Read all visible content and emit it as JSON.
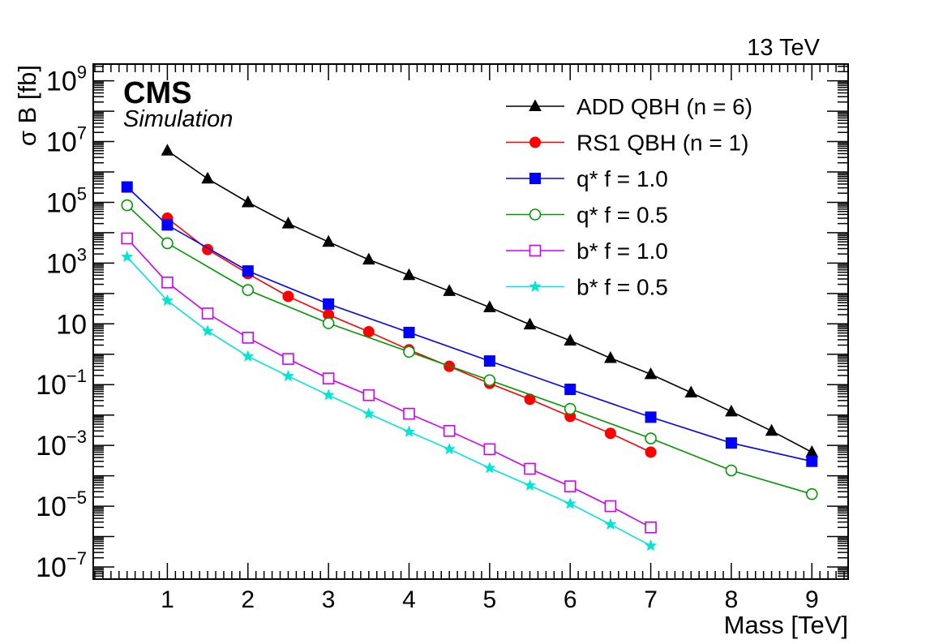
{
  "chart_data": {
    "type": "line",
    "title": "",
    "energy_label": "13 TeV",
    "experiment_label": "CMS",
    "sublabel": "Simulation",
    "xlabel": "Mass [TeV]",
    "ylabel": "σ B [fb]",
    "xlim": [
      0.08,
      9.45
    ],
    "ylim_log10": [
      -7.4,
      9.55
    ],
    "y_scale": "log",
    "x_ticks": [
      1,
      2,
      3,
      4,
      5,
      6,
      7,
      8,
      9
    ],
    "y_tick_labels": [
      {
        "exp": 9,
        "text": "10",
        "sup": "9"
      },
      {
        "exp": 7,
        "text": "10",
        "sup": "7"
      },
      {
        "exp": 5,
        "text": "10",
        "sup": "5"
      },
      {
        "exp": 3,
        "text": "10",
        "sup": "3"
      },
      {
        "exp": 1,
        "text": "10",
        "sup": ""
      },
      {
        "exp": -1,
        "text": "10",
        "sup": "−1"
      },
      {
        "exp": -3,
        "text": "10",
        "sup": "−3"
      },
      {
        "exp": -5,
        "text": "10",
        "sup": "−5"
      },
      {
        "exp": -7,
        "text": "10",
        "sup": "−7"
      }
    ],
    "legend_position": "top-right",
    "series": [
      {
        "name": "ADD QBH (n = 6)",
        "color": "#000000",
        "marker": "triangle",
        "filled": true,
        "x": [
          1,
          1.5,
          2,
          2.5,
          3,
          3.5,
          4,
          4.5,
          5,
          5.5,
          6,
          6.5,
          7,
          7.5,
          8,
          8.5,
          9
        ],
        "y": [
          5000000.0,
          600000.0,
          100000.0,
          20000.0,
          5000.0,
          1300.0,
          400,
          120,
          35,
          9.5,
          2.8,
          0.75,
          0.22,
          0.055,
          0.013,
          0.003,
          0.0006
        ]
      },
      {
        "name": "RS1 QBH (n = 1)",
        "color": "#ff0000",
        "marker": "circle",
        "filled": true,
        "x": [
          1,
          1.5,
          2,
          2.5,
          3,
          3.5,
          4,
          4.5,
          5,
          5.5,
          6,
          6.5,
          7
        ],
        "y": [
          30000.0,
          2800.0,
          450,
          80,
          20,
          5.5,
          1.4,
          0.4,
          0.11,
          0.033,
          0.009,
          0.0025,
          0.0006
        ]
      },
      {
        "name": "q* f = 1.0",
        "color": "#0000ff",
        "marker": "square",
        "filled": true,
        "x": [
          0.5,
          1,
          2,
          3,
          4,
          5,
          6,
          7,
          8,
          9
        ],
        "y": [
          320000.0,
          18000.0,
          550,
          45,
          5.2,
          0.6,
          0.07,
          0.0085,
          0.0012,
          0.0003
        ]
      },
      {
        "name": "q* f = 0.5",
        "color": "#009900",
        "marker": "circle",
        "filled": false,
        "x": [
          0.5,
          1,
          2,
          3,
          4,
          5,
          6,
          7,
          8,
          9
        ],
        "y": [
          80000.0,
          4500.0,
          130,
          10.5,
          1.2,
          0.14,
          0.016,
          0.0017,
          0.00015,
          2.5e-05
        ]
      },
      {
        "name": "b* f = 1.0",
        "color": "#cc00ff",
        "marker": "square",
        "filled": false,
        "x": [
          0.5,
          1,
          1.5,
          2,
          2.5,
          3,
          3.5,
          4,
          4.5,
          5,
          5.5,
          6,
          6.5,
          7
        ],
        "y": [
          6500,
          230,
          22,
          3.5,
          0.7,
          0.16,
          0.045,
          0.011,
          0.003,
          0.00075,
          0.00017,
          4.5e-05,
          1e-05,
          2e-06
        ]
      },
      {
        "name": "b* f = 0.5",
        "color": "#00e5d6",
        "marker": "star",
        "filled": true,
        "x": [
          0.5,
          1,
          1.5,
          2,
          2.5,
          3,
          3.5,
          4,
          4.5,
          5,
          5.5,
          6,
          6.5,
          7
        ],
        "y": [
          1600,
          58,
          5.8,
          0.85,
          0.19,
          0.045,
          0.011,
          0.0028,
          0.00075,
          0.00018,
          4.8e-05,
          1.2e-05,
          2.5e-06,
          5e-07
        ]
      }
    ]
  }
}
